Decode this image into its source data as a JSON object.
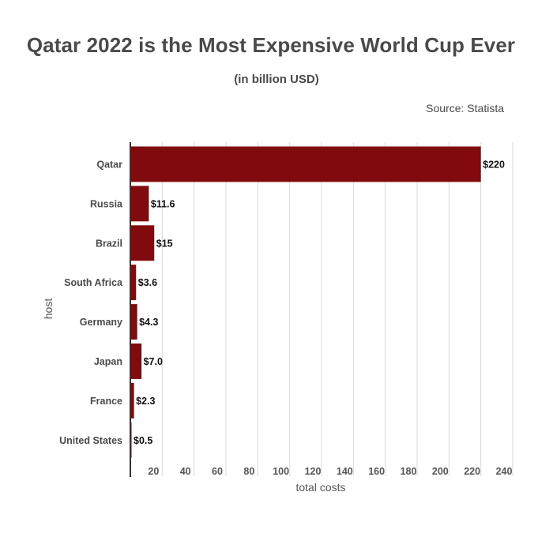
{
  "chart_data": {
    "type": "bar",
    "orientation": "horizontal",
    "title": "Qatar 2022 is the Most Expensive World Cup Ever",
    "subtitle": "(in billion USD)",
    "source": "Source: Statista",
    "xlabel": "total costs",
    "ylabel": "host",
    "categories": [
      "Qatar",
      "Russia",
      "Brazil",
      "South Africa",
      "Germany",
      "Japan",
      "France",
      "United States"
    ],
    "values": [
      220,
      11.6,
      15,
      3.6,
      4.3,
      7.0,
      2.3,
      0.5
    ],
    "data_labels": [
      "$220",
      "$11.6",
      "$15",
      "$3.6",
      "$4.3",
      "$7.0",
      "$2.3",
      "$0.5"
    ],
    "xlim": [
      0,
      240
    ],
    "xticks": [
      20,
      40,
      60,
      80,
      100,
      120,
      140,
      160,
      180,
      200,
      220,
      240
    ],
    "grid": true,
    "colors": {
      "bar": "#800a0e",
      "grid": "#d9d9d9",
      "axis": "#333333",
      "text": "#444444"
    }
  }
}
